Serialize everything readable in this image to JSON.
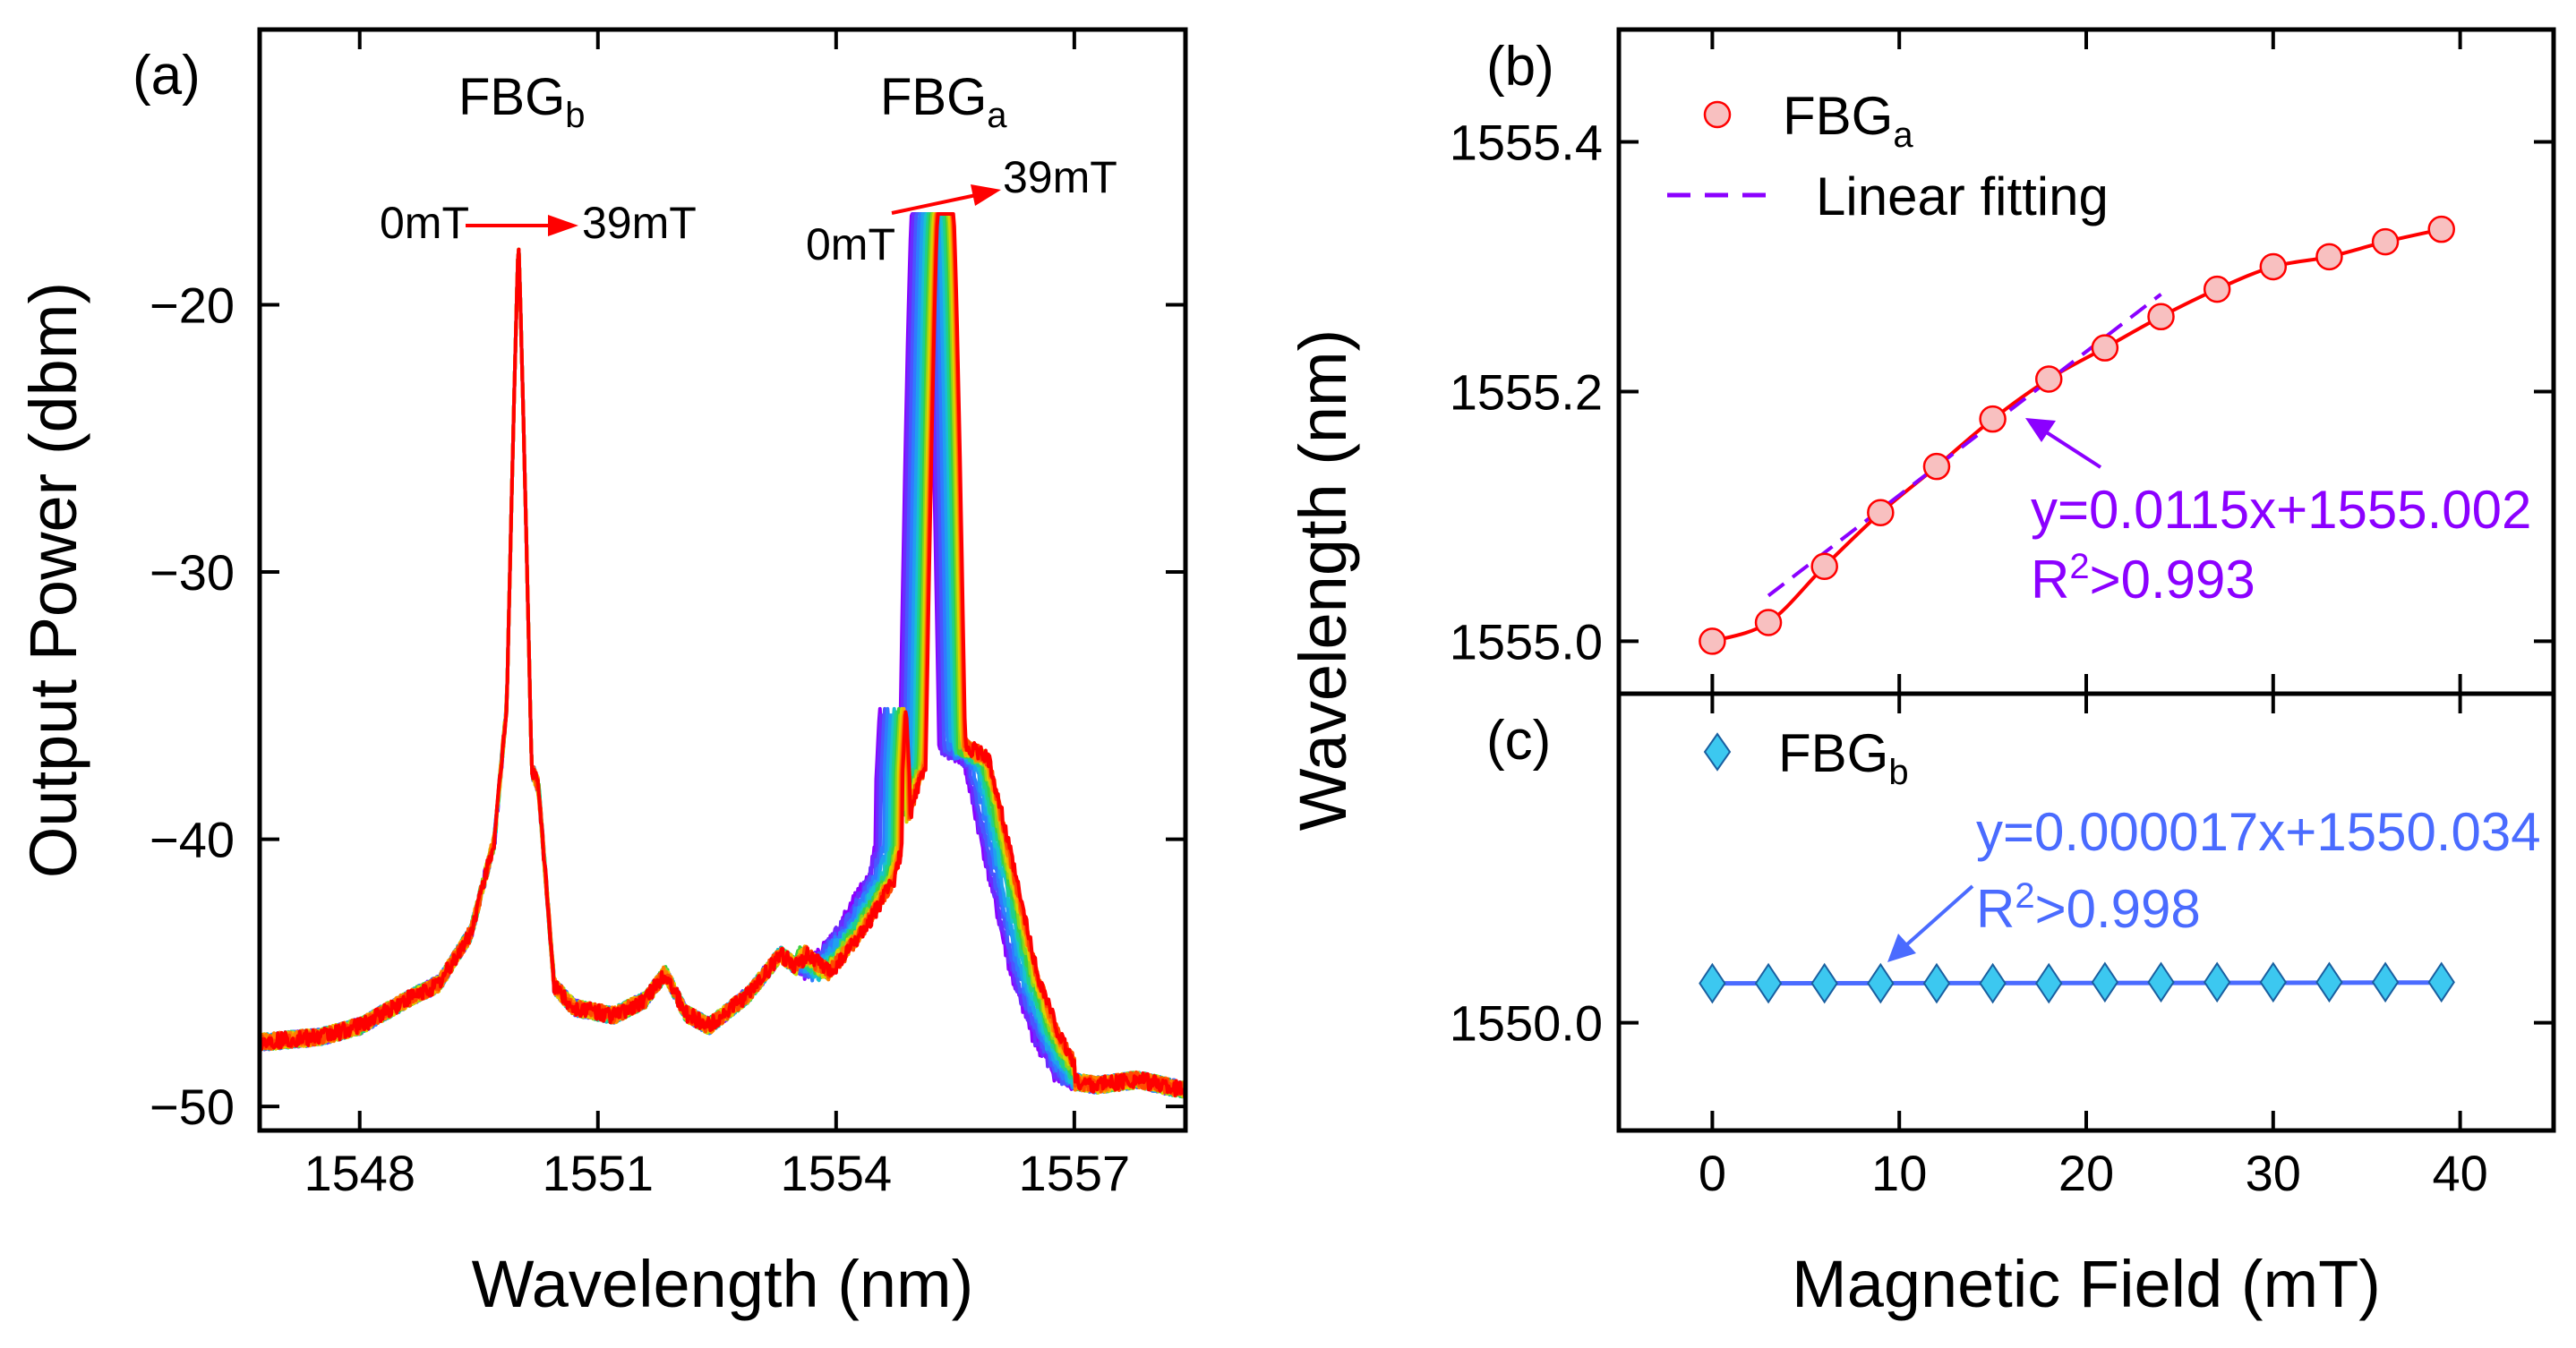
{
  "chart_data": [
    {
      "panel": "(a)",
      "type": "line",
      "xlabel": "Wavelength (nm)",
      "ylabel": "Output Power (dbm)",
      "xlim": [
        1546.74,
        1558.4
      ],
      "ylim": [
        -50.9,
        -9.7
      ],
      "xticks": [
        1548,
        1551,
        1554,
        1557
      ],
      "yticks": [
        -20,
        -30,
        -40,
        -50
      ],
      "xtick_labels": [
        "1548",
        "1551",
        "1554",
        "1557"
      ],
      "ytick_labels": [
        "−20",
        "−30",
        "−40",
        "−50"
      ],
      "annotations": {
        "fbg_b": {
          "main": "FBG",
          "sub": "b"
        },
        "fbg_a": {
          "main": "FBG",
          "sub": "a"
        },
        "b_start": "0mT",
        "b_end": "39mT",
        "a_start": "0mT",
        "a_end": "39mT"
      },
      "baseline": [
        [
          1546.74,
          -47.6
        ],
        [
          1547.5,
          -47.4
        ],
        [
          1548,
          -47
        ],
        [
          1548.6,
          -46
        ],
        [
          1549,
          -45.4
        ],
        [
          1549.4,
          -43.5
        ],
        [
          1549.7,
          -40
        ],
        [
          1549.85,
          -35
        ],
        [
          1550.25,
          -38
        ],
        [
          1550.45,
          -45.5
        ],
        [
          1550.7,
          -46.3
        ],
        [
          1551.2,
          -46.6
        ],
        [
          1551.6,
          -46
        ],
        [
          1551.85,
          -45
        ],
        [
          1552.1,
          -46.5
        ],
        [
          1552.4,
          -47
        ],
        [
          1552.9,
          -45.8
        ],
        [
          1553.3,
          -44.3
        ],
        [
          1553.6,
          -45
        ],
        [
          1554.0,
          -43.5
        ],
        [
          1554.4,
          -41.5
        ],
        [
          1554.7,
          -38
        ],
        [
          1555.0,
          -36
        ],
        [
          1555.6,
          -37
        ],
        [
          1555.9,
          -41
        ],
        [
          1556.2,
          -45
        ],
        [
          1556.5,
          -47.5
        ],
        [
          1556.8,
          -49
        ],
        [
          1557.3,
          -49.2
        ],
        [
          1557.8,
          -49
        ],
        [
          1558.4,
          -49.4
        ]
      ],
      "series": [
        {
          "field_mT": 0,
          "color": "#8B00FF",
          "fbg_b_peak": 1550.0,
          "fbg_a_peak": 1555.05,
          "fbg_b_top": -17.6,
          "fbg_a_top": -16.6
        },
        {
          "field_mT": 3,
          "color": "#6A2BFF",
          "fbg_b_peak": 1550.0,
          "fbg_a_peak": 1555.07,
          "fbg_b_top": -17.6,
          "fbg_a_top": -16.6
        },
        {
          "field_mT": 6,
          "color": "#4A55FF",
          "fbg_b_peak": 1550.0,
          "fbg_a_peak": 1555.11,
          "fbg_b_top": -17.6,
          "fbg_a_top": -16.6
        },
        {
          "field_mT": 9,
          "color": "#2F7BFF",
          "fbg_b_peak": 1550.0,
          "fbg_a_peak": 1555.15,
          "fbg_b_top": -17.6,
          "fbg_a_top": -16.6
        },
        {
          "field_mT": 12,
          "color": "#1FA0F0",
          "fbg_b_peak": 1550.0,
          "fbg_a_peak": 1555.19,
          "fbg_b_top": -17.6,
          "fbg_a_top": -16.6
        },
        {
          "field_mT": 15,
          "color": "#18C2D0",
          "fbg_b_peak": 1550.0,
          "fbg_a_peak": 1555.23,
          "fbg_b_top": -17.6,
          "fbg_a_top": -16.6
        },
        {
          "field_mT": 18,
          "color": "#1FD08A",
          "fbg_b_peak": 1550.0,
          "fbg_a_peak": 1555.26,
          "fbg_b_top": -17.6,
          "fbg_a_top": -16.6
        },
        {
          "field_mT": 21,
          "color": "#3CD040",
          "fbg_b_peak": 1550.0,
          "fbg_a_peak": 1555.29,
          "fbg_b_top": -17.6,
          "fbg_a_top": -16.6
        },
        {
          "field_mT": 24,
          "color": "#8FD41A",
          "fbg_b_peak": 1550.0,
          "fbg_a_peak": 1555.31,
          "fbg_b_top": -17.6,
          "fbg_a_top": -16.6
        },
        {
          "field_mT": 27,
          "color": "#D8D400",
          "fbg_b_peak": 1550.0,
          "fbg_a_peak": 1555.33,
          "fbg_b_top": -17.6,
          "fbg_a_top": -16.6
        },
        {
          "field_mT": 30,
          "color": "#F5B000",
          "fbg_b_peak": 1550.0,
          "fbg_a_peak": 1555.35,
          "fbg_b_top": -17.6,
          "fbg_a_top": -16.6
        },
        {
          "field_mT": 33,
          "color": "#FF8000",
          "fbg_b_peak": 1550.0,
          "fbg_a_peak": 1555.36,
          "fbg_b_top": -17.6,
          "fbg_a_top": -16.6
        },
        {
          "field_mT": 36,
          "color": "#FF4A00",
          "fbg_b_peak": 1550.0,
          "fbg_a_peak": 1555.37,
          "fbg_b_top": -17.6,
          "fbg_a_top": -16.6
        },
        {
          "field_mT": 39,
          "color": "#FF0000",
          "fbg_b_peak": 1550.0,
          "fbg_a_peak": 1555.38,
          "fbg_b_top": -17.6,
          "fbg_a_top": -16.6
        }
      ]
    },
    {
      "panel": "(b)",
      "type": "scatter",
      "ylabel": "Wavelength (nm)",
      "xlim": [
        -5,
        45
      ],
      "ylim": [
        1554.958,
        1555.49
      ],
      "yticks": [
        1555.0,
        1555.2,
        1555.4
      ],
      "ytick_labels": [
        "1555.0",
        "1555.2",
        "1555.4"
      ],
      "x": [
        0,
        3,
        6,
        9,
        12,
        15,
        18,
        21,
        24,
        27,
        30,
        33,
        36,
        39
      ],
      "y": [
        1555.0,
        1555.015,
        1555.06,
        1555.103,
        1555.14,
        1555.178,
        1555.21,
        1555.235,
        1555.26,
        1555.282,
        1555.3,
        1555.308,
        1555.32,
        1555.33
      ],
      "legend": [
        {
          "main": "FBG",
          "sub": "a"
        },
        {
          "main": "Linear fitting"
        }
      ],
      "fit": {
        "slope": 0.0115,
        "intercept": 1555.002,
        "x_range": [
          3,
          24
        ]
      },
      "fit_label": "y=0.0115x+1555.002",
      "r2_label": {
        "main": "R",
        "sup": "2",
        "rest": ">0.993"
      },
      "colors": {
        "points_fill": "#F8C0C0",
        "points_edge": "#FF0000",
        "curve": "#FF0000",
        "fit": "#8B00FF"
      }
    },
    {
      "panel": "(c)",
      "type": "scatter",
      "xlabel": "Magnetic Field (mT)",
      "xlim": [
        -5,
        45
      ],
      "ylim": [
        1549.907,
        1550.284
      ],
      "xticks": [
        0,
        10,
        20,
        30,
        40
      ],
      "xtick_labels": [
        "0",
        "10",
        "20",
        "30",
        "40"
      ],
      "yticks": [
        1550.0
      ],
      "ytick_labels": [
        "1550.0"
      ],
      "x": [
        0,
        3,
        6,
        9,
        12,
        15,
        18,
        21,
        24,
        27,
        30,
        33,
        36,
        39
      ],
      "y": [
        1550.034,
        1550.034,
        1550.034,
        1550.034,
        1550.034,
        1550.034,
        1550.034,
        1550.035,
        1550.035,
        1550.035,
        1550.035,
        1550.035,
        1550.035,
        1550.035
      ],
      "legend": [
        {
          "main": "FBG",
          "sub": "b"
        }
      ],
      "fit": {
        "slope": 1.7e-05,
        "intercept": 1550.034
      },
      "fit_label": "y=0.000017x+1550.034",
      "r2_label": {
        "main": "R",
        "sup": "2",
        "rest": ">0.998"
      },
      "colors": {
        "points_fill": "#3CC8F0",
        "points_edge": "#1A5FA0",
        "fit": "#4A6BFF"
      }
    }
  ]
}
